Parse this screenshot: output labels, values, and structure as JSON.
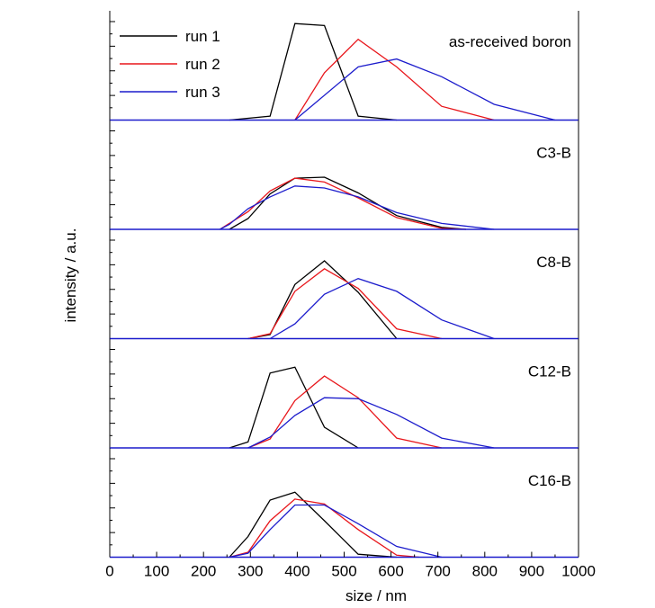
{
  "chart_data": {
    "type": "line",
    "xlabel": "size / nm",
    "ylabel": "intensity / a.u.",
    "xlim": [
      0,
      1000
    ],
    "x_ticks": [
      "0",
      "100",
      "200",
      "300",
      "400",
      "500",
      "600",
      "700",
      "800",
      "900",
      "1000"
    ],
    "legend": {
      "placement": "top-left",
      "entries": [
        {
          "name": "run 1",
          "color": "#000000"
        },
        {
          "name": "run 2",
          "color": "#e8161b"
        },
        {
          "name": "run 3",
          "color": "#1c1ccc"
        }
      ]
    },
    "grid": false,
    "panels": [
      {
        "label": "as-received boron",
        "ylim": [
          0,
          1
        ],
        "series": [
          {
            "name": "run 1",
            "color": "#000000",
            "points": [
              [
                255,
                0
              ],
              [
                342,
                0.04
              ],
              [
                395,
                0.98
              ],
              [
                458,
                0.96
              ],
              [
                530,
                0.04
              ],
              [
                612,
                0
              ]
            ]
          },
          {
            "name": "run 2",
            "color": "#e8161b",
            "points": [
              [
                395,
                0
              ],
              [
                458,
                0.48
              ],
              [
                530,
                0.82
              ],
              [
                612,
                0.54
              ],
              [
                708,
                0.14
              ],
              [
                820,
                0
              ]
            ]
          },
          {
            "name": "run 3",
            "color": "#1c1ccc",
            "points": [
              [
                395,
                0
              ],
              [
                530,
                0.54
              ],
              [
                612,
                0.62
              ],
              [
                708,
                0.44
              ],
              [
                820,
                0.16
              ],
              [
                950,
                0
              ]
            ]
          }
        ]
      },
      {
        "label": "C3-B",
        "ylim": [
          0,
          1
        ],
        "series": [
          {
            "name": "run 1",
            "color": "#000000",
            "points": [
              [
                255,
                0
              ],
              [
                295,
                0.11
              ],
              [
                342,
                0.36
              ],
              [
                395,
                0.52
              ],
              [
                458,
                0.53
              ],
              [
                530,
                0.37
              ],
              [
                612,
                0.14
              ],
              [
                708,
                0.02
              ],
              [
                760,
                0
              ]
            ]
          },
          {
            "name": "run 2",
            "color": "#e8161b",
            "points": [
              [
                235,
                0
              ],
              [
                295,
                0.18
              ],
              [
                342,
                0.39
              ],
              [
                395,
                0.52
              ],
              [
                458,
                0.48
              ],
              [
                530,
                0.32
              ],
              [
                612,
                0.12
              ],
              [
                708,
                0.01
              ],
              [
                760,
                0
              ]
            ]
          },
          {
            "name": "run 3",
            "color": "#1c1ccc",
            "points": [
              [
                235,
                0
              ],
              [
                255,
                0.05
              ],
              [
                295,
                0.21
              ],
              [
                342,
                0.33
              ],
              [
                395,
                0.44
              ],
              [
                458,
                0.42
              ],
              [
                530,
                0.33
              ],
              [
                612,
                0.17
              ],
              [
                708,
                0.06
              ],
              [
                820,
                0
              ]
            ]
          }
        ]
      },
      {
        "label": "C8-B",
        "ylim": [
          0,
          1
        ],
        "series": [
          {
            "name": "run 1",
            "color": "#000000",
            "points": [
              [
                295,
                0
              ],
              [
                342,
                0.04
              ],
              [
                395,
                0.55
              ],
              [
                458,
                0.79
              ],
              [
                530,
                0.47
              ],
              [
                612,
                0
              ]
            ]
          },
          {
            "name": "run 2",
            "color": "#e8161b",
            "points": [
              [
                295,
                0
              ],
              [
                342,
                0.05
              ],
              [
                395,
                0.48
              ],
              [
                458,
                0.71
              ],
              [
                530,
                0.51
              ],
              [
                612,
                0.1
              ],
              [
                708,
                0
              ]
            ]
          },
          {
            "name": "run 3",
            "color": "#1c1ccc",
            "points": [
              [
                342,
                0
              ],
              [
                395,
                0.15
              ],
              [
                458,
                0.45
              ],
              [
                530,
                0.61
              ],
              [
                612,
                0.48
              ],
              [
                708,
                0.19
              ],
              [
                820,
                0
              ]
            ]
          }
        ]
      },
      {
        "label": "C12-B",
        "ylim": [
          0,
          1
        ],
        "series": [
          {
            "name": "run 1",
            "color": "#000000",
            "points": [
              [
                255,
                0
              ],
              [
                295,
                0.06
              ],
              [
                342,
                0.76
              ],
              [
                395,
                0.82
              ],
              [
                458,
                0.21
              ],
              [
                530,
                0
              ]
            ]
          },
          {
            "name": "run 2",
            "color": "#e8161b",
            "points": [
              [
                295,
                0
              ],
              [
                342,
                0.09
              ],
              [
                395,
                0.48
              ],
              [
                458,
                0.73
              ],
              [
                530,
                0.51
              ],
              [
                612,
                0.1
              ],
              [
                708,
                0
              ]
            ]
          },
          {
            "name": "run 3",
            "color": "#1c1ccc",
            "points": [
              [
                295,
                0
              ],
              [
                342,
                0.11
              ],
              [
                395,
                0.33
              ],
              [
                458,
                0.51
              ],
              [
                530,
                0.5
              ],
              [
                612,
                0.34
              ],
              [
                708,
                0.1
              ],
              [
                820,
                0
              ]
            ]
          }
        ]
      },
      {
        "label": "C16-B",
        "ylim": [
          0,
          1
        ],
        "series": [
          {
            "name": "run 1",
            "color": "#000000",
            "points": [
              [
                255,
                0
              ],
              [
                295,
                0.21
              ],
              [
                342,
                0.58
              ],
              [
                395,
                0.66
              ],
              [
                458,
                0.37
              ],
              [
                530,
                0.03
              ],
              [
                612,
                0
              ]
            ]
          },
          {
            "name": "run 2",
            "color": "#e8161b",
            "points": [
              [
                255,
                0
              ],
              [
                295,
                0.05
              ],
              [
                342,
                0.37
              ],
              [
                395,
                0.59
              ],
              [
                458,
                0.54
              ],
              [
                530,
                0.28
              ],
              [
                612,
                0.02
              ],
              [
                660,
                0
              ]
            ]
          },
          {
            "name": "run 3",
            "color": "#1c1ccc",
            "points": [
              [
                255,
                0
              ],
              [
                295,
                0.04
              ],
              [
                342,
                0.28
              ],
              [
                395,
                0.53
              ],
              [
                458,
                0.53
              ],
              [
                530,
                0.34
              ],
              [
                612,
                0.11
              ],
              [
                708,
                0
              ]
            ]
          }
        ]
      }
    ]
  }
}
